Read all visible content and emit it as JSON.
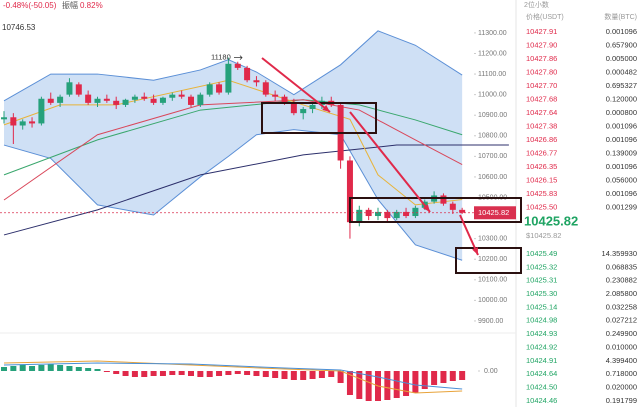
{
  "chart_data": {
    "type": "candlestick",
    "change": "-0.48%(-50.05)",
    "amplitude_label": "振幅",
    "amplitude": "0.82%",
    "ma_value": "10746.53",
    "high_label": 11180,
    "last_price": 10425.82,
    "ylim": [
      9856,
      11460
    ],
    "yticks": [
      {
        "value": 9900,
        "label": "9900.00"
      },
      {
        "value": 10000,
        "label": "10000.00"
      },
      {
        "value": 10100,
        "label": "10100.00"
      },
      {
        "value": 10200,
        "label": "10200.00"
      },
      {
        "value": 10300,
        "label": "10300.00"
      },
      {
        "value": 10500,
        "label": "10500.00"
      },
      {
        "value": 10600,
        "label": "10600.00"
      },
      {
        "value": 10700,
        "label": "10700.00"
      },
      {
        "value": 10800,
        "label": "10800.00"
      },
      {
        "value": 10900,
        "label": "10900.00"
      },
      {
        "value": 11000,
        "label": "11000.00"
      },
      {
        "value": 11100,
        "label": "11100.00"
      },
      {
        "value": 11200,
        "label": "11200.00"
      },
      {
        "value": 11300,
        "label": "11300.00"
      }
    ],
    "up_color": "#26a17b",
    "down_color": "#e0294a",
    "candles": [
      [
        10880,
        10920,
        10860,
        10890
      ],
      [
        10890,
        10910,
        10760,
        10850
      ],
      [
        10850,
        10880,
        10830,
        10870
      ],
      [
        10870,
        10890,
        10840,
        10860
      ],
      [
        10860,
        10990,
        10850,
        10980
      ],
      [
        10980,
        11010,
        10950,
        10960
      ],
      [
        10960,
        11000,
        10940,
        10990
      ],
      [
        11000,
        11080,
        10990,
        11060
      ],
      [
        11050,
        11060,
        10990,
        11000
      ],
      [
        11000,
        11020,
        10950,
        10960
      ],
      [
        10960,
        10990,
        10940,
        10980
      ],
      [
        10980,
        11000,
        10960,
        10970
      ],
      [
        10970,
        10990,
        10930,
        10950
      ],
      [
        10950,
        10980,
        10940,
        10975
      ],
      [
        10975,
        11000,
        10960,
        10990
      ],
      [
        10990,
        11010,
        10970,
        10980
      ],
      [
        10980,
        11000,
        10950,
        10960
      ],
      [
        10960,
        10990,
        10950,
        10985
      ],
      [
        10985,
        11010,
        10970,
        11000
      ],
      [
        11000,
        11020,
        10980,
        10990
      ],
      [
        10990,
        11000,
        10940,
        10950
      ],
      [
        10950,
        11010,
        10940,
        11000
      ],
      [
        11000,
        11060,
        10990,
        11050
      ],
      [
        11050,
        11060,
        11000,
        11010
      ],
      [
        11010,
        11180,
        11000,
        11150
      ],
      [
        11150,
        11160,
        11120,
        11130
      ],
      [
        11130,
        11140,
        11060,
        11070
      ],
      [
        11070,
        11090,
        11040,
        11060
      ],
      [
        11060,
        11070,
        10990,
        11000
      ],
      [
        11000,
        11020,
        10970,
        10990
      ],
      [
        10990,
        11000,
        10950,
        10960
      ],
      [
        10960,
        10980,
        10900,
        10910
      ],
      [
        10910,
        10940,
        10880,
        10930
      ],
      [
        10930,
        10960,
        10910,
        10950
      ],
      [
        10950,
        10990,
        10930,
        10970
      ],
      [
        10970,
        10990,
        10940,
        10950
      ],
      [
        10950,
        10960,
        10640,
        10680
      ],
      [
        10680,
        10700,
        10300,
        10380
      ],
      [
        10380,
        10460,
        10360,
        10440
      ],
      [
        10440,
        10450,
        10390,
        10410
      ],
      [
        10410,
        10450,
        10390,
        10430
      ],
      [
        10430,
        10440,
        10380,
        10400
      ],
      [
        10400,
        10440,
        10390,
        10430
      ],
      [
        10430,
        10450,
        10400,
        10410
      ],
      [
        10410,
        10460,
        10400,
        10450
      ],
      [
        10450,
        10490,
        10440,
        10480
      ],
      [
        10480,
        10530,
        10470,
        10510
      ],
      [
        10510,
        10520,
        10460,
        10470
      ],
      [
        10470,
        10480,
        10420,
        10440
      ],
      [
        10440,
        10450,
        10420,
        10426
      ]
    ],
    "band": {
      "color": "#5b8fd6",
      "fill": "#cfe0f5",
      "x": [
        0,
        5,
        10,
        16,
        21,
        24,
        27,
        31,
        36,
        40,
        44,
        49
      ],
      "upper": [
        10970,
        11100,
        11100,
        11070,
        11120,
        11170,
        11110,
        11000,
        11145,
        11310,
        11240,
        11095
      ],
      "lower": [
        10755,
        10690,
        10464,
        10415,
        10600,
        10700,
        10805,
        10830,
        10805,
        10490,
        10270,
        10195
      ]
    },
    "series": [
      {
        "color": "#2c2f6b",
        "x": [
          0,
          10,
          21,
          32,
          42,
          54
        ],
        "values": [
          10318,
          10440,
          10610,
          10707,
          10755,
          10755
        ]
      },
      {
        "color": "#3aa76d",
        "x": [
          0,
          10,
          21,
          32,
          38,
          44,
          49
        ],
        "values": [
          10610,
          10780,
          10925,
          10975,
          10950,
          10877,
          10805
        ]
      },
      {
        "color": "#d9475a",
        "x": [
          0,
          10,
          21,
          32,
          38,
          44,
          49
        ],
        "values": [
          10488,
          10805,
          10950,
          10975,
          10925,
          10780,
          10660
        ]
      },
      {
        "color": "#e8b339",
        "x": [
          0,
          6,
          12,
          24,
          32,
          37,
          40,
          44,
          49
        ],
        "values": [
          10853,
          10950,
          10950,
          11070,
          10950,
          10880,
          10610,
          10464,
          10490
        ]
      }
    ],
    "macd": {
      "ylim": [
        -36,
        36
      ],
      "yticks": [
        {
          "value": 0,
          "label": "0.00"
        }
      ],
      "hist": [
        4,
        5,
        6,
        5,
        6,
        7,
        6,
        5,
        4,
        3,
        2,
        -1,
        -3,
        -5,
        -6,
        -6,
        -5,
        -5,
        -4,
        -4,
        -5,
        -6,
        -6,
        -5,
        -4,
        -3,
        -4,
        -5,
        -6,
        -7,
        -8,
        -9,
        -9,
        -8,
        -7,
        -6,
        -12,
        -24,
        -28,
        -30,
        -30,
        -29,
        -27,
        -25,
        -22,
        -18,
        -14,
        -12,
        -10,
        -9
      ],
      "lines": [
        {
          "color": "#e8a33a",
          "x": [
            0,
            10,
            20,
            30,
            36,
            40,
            44,
            49
          ],
          "values": [
            8,
            10,
            6,
            2,
            0,
            -15,
            -22,
            -20
          ]
        },
        {
          "color": "#4a8fd6",
          "x": [
            0,
            10,
            20,
            30,
            36,
            40,
            44,
            49
          ],
          "values": [
            6,
            8,
            7,
            3,
            1,
            -6,
            -14,
            -18
          ]
        }
      ]
    }
  },
  "order_book": {
    "precision": "2位小数",
    "headers": [
      "价格(USDT)",
      "数量(BTC)"
    ],
    "asks": [
      [
        "10427.91",
        "0.001096"
      ],
      [
        "10427.90",
        "0.657900"
      ],
      [
        "10427.86",
        "0.005000"
      ],
      [
        "10427.80",
        "0.000482"
      ],
      [
        "10427.70",
        "0.695327"
      ],
      [
        "10427.68",
        "0.120000"
      ],
      [
        "10427.64",
        "0.000800"
      ],
      [
        "10427.38",
        "0.001096"
      ],
      [
        "10426.86",
        "0.001096"
      ],
      [
        "10426.77",
        "0.139009"
      ],
      [
        "10426.35",
        "0.001096"
      ],
      [
        "10426.15",
        "0.056000"
      ],
      [
        "10425.83",
        "0.001096"
      ],
      [
        "10425.50",
        "0.001299"
      ]
    ],
    "mid_price": "10425.82",
    "mid_usd": "$10425.82",
    "bids": [
      [
        "10425.49",
        "14.359930"
      ],
      [
        "10425.32",
        "0.068835"
      ],
      [
        "10425.31",
        "0.230882"
      ],
      [
        "10425.30",
        "2.085800"
      ],
      [
        "10425.14",
        "0.032258"
      ],
      [
        "10424.98",
        "0.027212"
      ],
      [
        "10424.93",
        "0.249900"
      ],
      [
        "10424.92",
        "0.010000"
      ],
      [
        "10424.91",
        "4.399400"
      ],
      [
        "10424.64",
        "0.718000"
      ],
      [
        "10424.50",
        "0.020000"
      ],
      [
        "10424.46",
        "0.191799"
      ]
    ]
  }
}
